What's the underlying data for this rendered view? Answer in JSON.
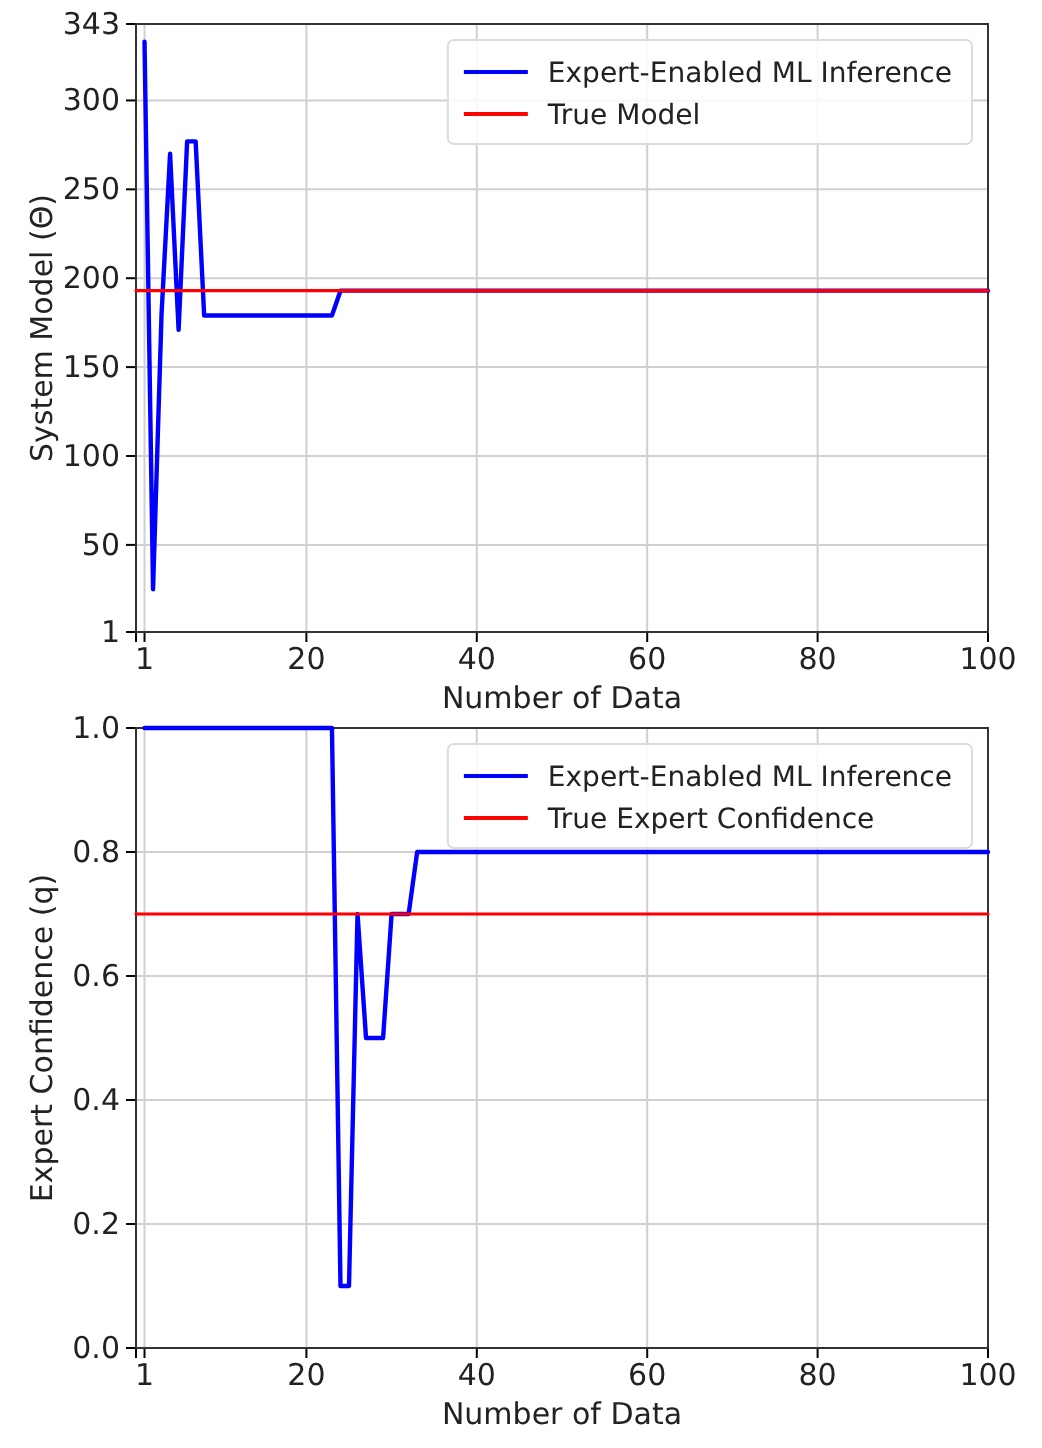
{
  "chart_data": [
    {
      "type": "line",
      "xlabel": "Number of Data",
      "ylabel": "System Model (Θ)",
      "xlim": [
        0,
        100
      ],
      "xticks": [
        1,
        20,
        40,
        60,
        80,
        100
      ],
      "ylim": [
        1,
        343
      ],
      "yticks": [
        1,
        50,
        100,
        150,
        200,
        250,
        300,
        343
      ],
      "grid": true,
      "legend": "top right",
      "line_style": "solid",
      "marker": "none",
      "series": [
        {
          "name": "Expert-Enabled ML Inference",
          "color": "#0000ff",
          "x": [
            1,
            2,
            3,
            4,
            5,
            6,
            7,
            8,
            23,
            24,
            100
          ],
          "values": [
            333,
            25,
            180,
            270,
            171,
            277,
            277,
            179,
            179,
            193,
            193
          ]
        },
        {
          "name": "True Model",
          "color": "#ff0000",
          "x": [
            0,
            100
          ],
          "values": [
            193,
            193
          ]
        }
      ]
    },
    {
      "type": "line",
      "xlabel": "Number of Data",
      "ylabel": "Expert Confidence (q)",
      "xlim": [
        0,
        100
      ],
      "xticks": [
        1,
        20,
        40,
        60,
        80,
        100
      ],
      "ylim": [
        0,
        1
      ],
      "yticks": [
        {
          "value": 0,
          "label": "0.0"
        },
        {
          "value": 0.2,
          "label": "0.2"
        },
        {
          "value": 0.4,
          "label": "0.4"
        },
        {
          "value": 0.6,
          "label": "0.6"
        },
        {
          "value": 0.8,
          "label": "0.8"
        },
        {
          "value": 1,
          "label": "1.0"
        }
      ],
      "grid": true,
      "legend": "top right",
      "line_style": "solid",
      "marker": "none",
      "series": [
        {
          "name": "Expert-Enabled ML Inference",
          "color": "#0000ff",
          "x": [
            1,
            23,
            24,
            25,
            26,
            27,
            29,
            30,
            32,
            33,
            100
          ],
          "values": [
            1,
            1,
            0.1,
            0.1,
            0.7,
            0.5,
            0.5,
            0.7,
            0.7,
            0.8,
            0.8
          ]
        },
        {
          "name": "True Expert Confidence",
          "color": "#ff0000",
          "x": [
            0,
            100
          ],
          "values": [
            0.7,
            0.7
          ]
        }
      ]
    }
  ]
}
